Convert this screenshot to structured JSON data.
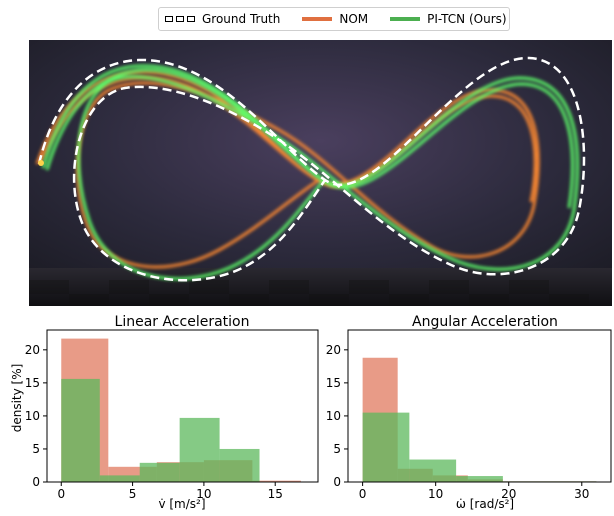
{
  "legend": {
    "items": [
      {
        "label": "Ground Truth",
        "color": "#ffffff",
        "style": "dashed"
      },
      {
        "label": "NOM",
        "color": "#e07040",
        "style": "solid"
      },
      {
        "label": "PI-TCN (Ours)",
        "color": "#4caf50",
        "style": "solid"
      }
    ]
  },
  "photo": {
    "description_icon": "long-exposure-figure-eight-trajectory"
  },
  "chart_data": [
    {
      "type": "histogram",
      "title": "Linear Acceleration",
      "xlabel": "v̇ [m/s²]",
      "ylabel": "density [%]",
      "xlim": [
        -1,
        18
      ],
      "ylim": [
        0,
        23
      ],
      "xticks": [
        0,
        5,
        10,
        15
      ],
      "yticks": [
        0,
        5,
        10,
        15,
        20
      ],
      "series": [
        {
          "name": "NOM",
          "color": "#e07a5f",
          "bins": [
            [
              0,
              3.3,
              21.7
            ],
            [
              3.3,
              6.7,
              2.3
            ],
            [
              6.7,
              10,
              3.0
            ],
            [
              10,
              13.4,
              3.3
            ],
            [
              13.4,
              16.8,
              0.2
            ]
          ]
        },
        {
          "name": "PI-TCN (Ours)",
          "color": "#5cb85c",
          "bins": [
            [
              0,
              2.7,
              15.6
            ],
            [
              2.7,
              5.5,
              1.0
            ],
            [
              5.5,
              8.3,
              2.9
            ],
            [
              8.3,
              11.1,
              9.7
            ],
            [
              11.1,
              13.9,
              5.0
            ]
          ]
        }
      ]
    },
    {
      "type": "histogram",
      "title": "Angular Acceleration",
      "xlabel": "ω̇ [rad/s²]",
      "ylabel": "",
      "xlim": [
        -2,
        34
      ],
      "ylim": [
        0,
        23
      ],
      "xticks": [
        0,
        10,
        20,
        30
      ],
      "yticks": [
        0,
        5,
        10,
        15,
        20
      ],
      "series": [
        {
          "name": "NOM",
          "color": "#e07a5f",
          "bins": [
            [
              0,
              4.8,
              18.8
            ],
            [
              4.8,
              9.6,
              2.0
            ],
            [
              9.6,
              14.4,
              1.0
            ],
            [
              14.4,
              19.2,
              0.4
            ],
            [
              19.2,
              32,
              0.1
            ]
          ]
        },
        {
          "name": "PI-TCN (Ours)",
          "color": "#5cb85c",
          "bins": [
            [
              0,
              6.4,
              10.5
            ],
            [
              6.4,
              12.8,
              3.4
            ],
            [
              12.8,
              19.2,
              0.9
            ],
            [
              19.2,
              32,
              0.1
            ]
          ]
        }
      ]
    }
  ]
}
